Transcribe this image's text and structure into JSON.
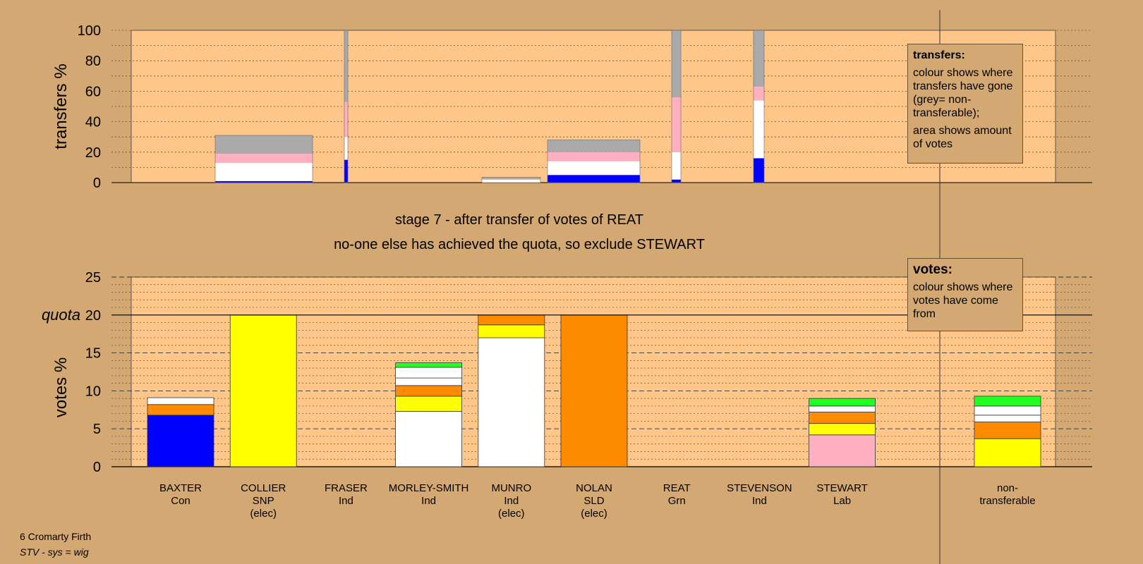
{
  "footer": {
    "line1": "6 Cromarty Firth",
    "line2": "STV - sys = wig"
  },
  "stage_text": {
    "line1": "stage 7 - after transfer of votes of REAT",
    "line2": "no-one else has achieved the quota, so exclude STEWART"
  },
  "legends": {
    "transfers": {
      "title": "transfers:",
      "para1": "colour shows where transfers have gone (grey= non-transferable);",
      "para2": "area shows amount of votes"
    },
    "votes": {
      "title": "votes:",
      "para1": "colour shows where votes have come from"
    }
  },
  "colors": {
    "background": "#d4a872",
    "plot": "#ffc689",
    "Con": "#0000ff",
    "SNP": "#ffff00",
    "SLD": "#ff8c00",
    "Ind": "#ffffff",
    "Lab": "#ffb0c0",
    "Grn": "#22ff22",
    "nontransferable": "#aaaaaa"
  },
  "chart_data": [
    {
      "type": "bar",
      "subtype": "stacked, variable width",
      "ylabel": "transfers %",
      "ylim": [
        0,
        100
      ],
      "yticks": [
        0,
        20,
        40,
        60,
        80,
        100
      ],
      "grid": true,
      "segment_order": [
        "Con",
        "Ind",
        "Lab",
        "nontransferable"
      ],
      "series": [
        {
          "name": "BAXTER",
          "values": {
            "Con": 1,
            "Ind": 12,
            "Lab": 6,
            "nontransferable": 12
          }
        },
        {
          "name": "FRASER",
          "values": {
            "Con": 15,
            "Ind": 15,
            "Lab": 23,
            "nontransferable": 47
          }
        },
        {
          "name": "MORLEY-SMITH",
          "values": {
            "Ind": 2,
            "nontransferable": 1.5
          }
        },
        {
          "name": "MUNRO",
          "values": {
            "Con": 5,
            "Ind": 9,
            "Lab": 6,
            "nontransferable": 8
          }
        },
        {
          "name": "REAT",
          "values": {
            "Con": 2,
            "Ind": 18,
            "Lab": 36,
            "nontransferable": 44
          }
        },
        {
          "name": "STEVENSON",
          "values": {
            "Con": 16,
            "Ind": 38,
            "Lab": 9,
            "nontransferable": 37
          }
        }
      ]
    },
    {
      "type": "bar",
      "subtype": "stacked",
      "ylabel": "votes %",
      "ylim": [
        0,
        25
      ],
      "yticks": [
        0,
        5,
        10,
        15,
        20,
        25
      ],
      "quota": 20,
      "quota_label": "quota",
      "grid": true,
      "categories": [
        {
          "name": "BAXTER",
          "party": "Con",
          "note": ""
        },
        {
          "name": "COLLIER",
          "party": "SNP",
          "note": "(elec)"
        },
        {
          "name": "FRASER",
          "party": "Ind",
          "note": ""
        },
        {
          "name": "MORLEY-SMITH",
          "party": "Ind",
          "note": ""
        },
        {
          "name": "MUNRO",
          "party": "Ind",
          "note": "(elec)"
        },
        {
          "name": "NOLAN",
          "party": "SLD",
          "note": "(elec)"
        },
        {
          "name": "REAT",
          "party": "Grn",
          "note": ""
        },
        {
          "name": "STEVENSON",
          "party": "Ind",
          "note": ""
        },
        {
          "name": "STEWART",
          "party": "Lab",
          "note": ""
        },
        {
          "name": "",
          "party": "",
          "note": ""
        },
        {
          "name": "non-",
          "party": "transferable",
          "note": ""
        }
      ],
      "segment_order": [
        "Con",
        "SNP",
        "Lab",
        "SLD",
        "Ind",
        "Grn"
      ],
      "stacks": [
        [
          [
            "Con",
            6.8
          ],
          [
            "SLD",
            1.4
          ],
          [
            "Ind",
            0.9
          ]
        ],
        [
          [
            "SNP",
            20
          ]
        ],
        [],
        [
          [
            "Ind",
            7.3
          ],
          [
            "SNP",
            2.0
          ],
          [
            "SLD",
            1.4
          ],
          [
            "Ind",
            1.0
          ],
          [
            "Ind",
            1.4
          ],
          [
            "Grn",
            0.6
          ]
        ],
        [
          [
            "Ind",
            17.0
          ],
          [
            "SNP",
            1.7
          ],
          [
            "SLD",
            1.3
          ]
        ],
        [
          [
            "SLD",
            20
          ]
        ],
        [],
        [],
        [
          [
            "Lab",
            4.2
          ],
          [
            "SNP",
            1.5
          ],
          [
            "SLD",
            1.5
          ],
          [
            "Ind",
            0.8
          ],
          [
            "Grn",
            1.0
          ]
        ],
        [],
        [
          [
            "SNP",
            3.7
          ],
          [
            "SLD",
            2.2
          ],
          [
            "Ind",
            0.9
          ],
          [
            "Ind",
            1.2
          ],
          [
            "Grn",
            1.3
          ]
        ]
      ]
    }
  ]
}
